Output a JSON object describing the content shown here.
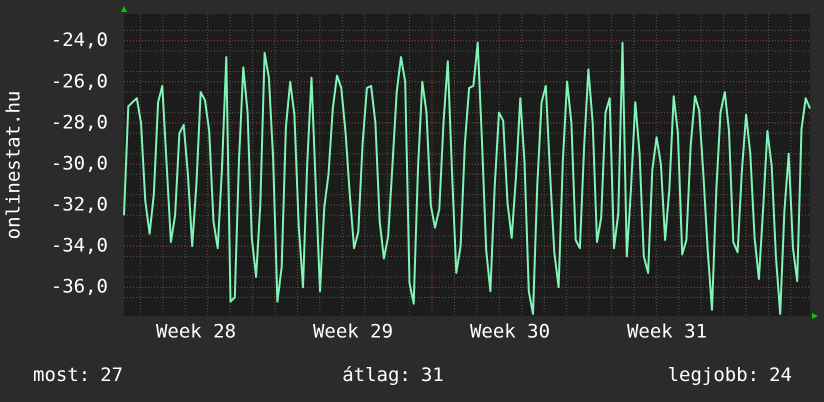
{
  "chart_data": {
    "type": "line",
    "ylabel": "onlinestat.hu",
    "x_labels": [
      "Week 28",
      "Week 29",
      "Week 30",
      "Week 31"
    ],
    "ylim": [
      -37.4,
      -22.7
    ],
    "yticks": [
      {
        "value": -24,
        "label": "-24,0"
      },
      {
        "value": -26,
        "label": "-26,0"
      },
      {
        "value": -28,
        "label": "-28,0"
      },
      {
        "value": -30,
        "label": "-30,0"
      },
      {
        "value": -32,
        "label": "-32,0"
      },
      {
        "value": -34,
        "label": "-34,0"
      },
      {
        "value": -36,
        "label": "-36,0"
      }
    ],
    "grid": true,
    "series": [
      {
        "color": "#80f5b8",
        "values": [
          -32.5,
          -27.2,
          -27,
          -26.8,
          -28,
          -31.8,
          -33.4,
          -31.5,
          -27,
          -26.2,
          -30,
          -33.8,
          -32.5,
          -28.5,
          -28.1,
          -30.5,
          -34,
          -31,
          -26.5,
          -26.9,
          -28.4,
          -32.8,
          -34.1,
          -30.2,
          -24.8,
          -36.7,
          -36.5,
          -29.8,
          -25.3,
          -27.5,
          -33.6,
          -35.5,
          -32,
          -24.6,
          -25.8,
          -29.7,
          -36.7,
          -35,
          -28.2,
          -26,
          -27.6,
          -33,
          -36,
          -30,
          -25.8,
          -31,
          -36.2,
          -32.1,
          -30.5,
          -27.3,
          -25.7,
          -26.3,
          -28.5,
          -31.5,
          -34.1,
          -33.3,
          -29,
          -26.3,
          -26.2,
          -28,
          -32.8,
          -34.6,
          -33.5,
          -30.1,
          -26.5,
          -24.8,
          -26,
          -35.8,
          -36.8,
          -30.2,
          -26,
          -27.5,
          -32,
          -33.1,
          -32.2,
          -27.9,
          -25,
          -30.5,
          -35.3,
          -34,
          -29,
          -26.3,
          -26.2,
          -24.1,
          -28.8,
          -34.2,
          -36.2,
          -31.1,
          -27.5,
          -27.9,
          -31.9,
          -33.6,
          -30.6,
          -26.8,
          -29.9,
          -36.2,
          -37.3,
          -31,
          -27,
          -26.2,
          -30.5,
          -34.3,
          -36,
          -29.8,
          -26,
          -28,
          -33.7,
          -34.1,
          -29.1,
          -25.4,
          -28,
          -33.8,
          -32.6,
          -27.5,
          -26.8,
          -34.1,
          -32.4,
          -24.1,
          -34.5,
          -31.2,
          -27,
          -29.5,
          -34.5,
          -35.3,
          -30.3,
          -28.7,
          -30,
          -33.7,
          -31.2,
          -26.7,
          -28.5,
          -34.4,
          -33.7,
          -29.1,
          -26.7,
          -27.4,
          -30.6,
          -34.2,
          -37.1,
          -31.3,
          -27.5,
          -26.5,
          -28.4,
          -33.8,
          -34.3,
          -30.4,
          -27.6,
          -29.5,
          -33.6,
          -35.6,
          -32.2,
          -28.4,
          -30.1,
          -34.5,
          -37.3,
          -32.3,
          -29.5,
          -34.1,
          -35.7,
          -28.3,
          -26.8,
          -27.3
        ]
      }
    ],
    "footer": [
      {
        "label": "most:",
        "value": 27
      },
      {
        "label": "átlag:",
        "value": 31
      },
      {
        "label": "legjobb:",
        "value": 24
      }
    ]
  }
}
